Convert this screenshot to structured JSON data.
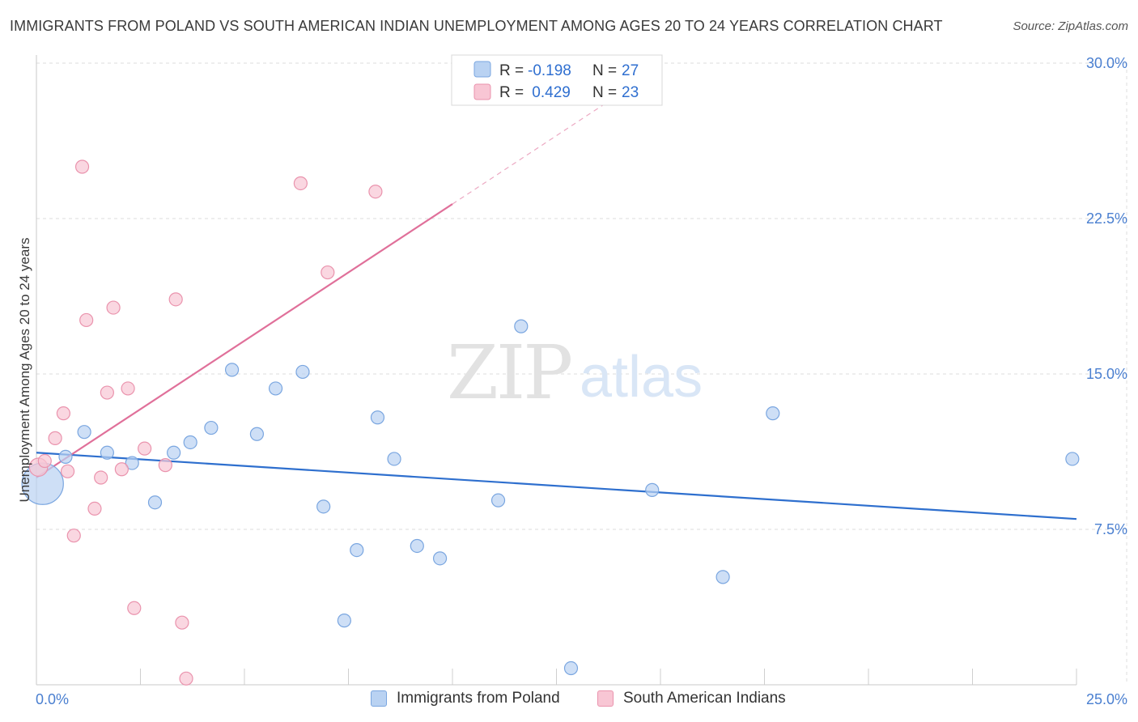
{
  "title": "IMMIGRANTS FROM POLAND VS SOUTH AMERICAN INDIAN UNEMPLOYMENT AMONG AGES 20 TO 24 YEARS CORRELATION CHART",
  "source": "Source: ZipAtlas.com",
  "watermark": {
    "zip": "ZIP",
    "atlas": "atlas"
  },
  "colors": {
    "blue_fill": "#b9d2f2",
    "blue_stroke": "#7aa6e0",
    "blue_line": "#2e6fce",
    "pink_fill": "#f8c6d4",
    "pink_stroke": "#ea93ad",
    "pink_line": "#e0709a",
    "grid": "#dcdcdc",
    "axis_text": "#4a7fd0"
  },
  "legend": {
    "rows": [
      {
        "r_label": "R = ",
        "r_value": "-0.198",
        "n_label": "N = ",
        "n_value": "27"
      },
      {
        "r_label": "R = ",
        "r_value": " 0.429",
        "n_label": "N = ",
        "n_value": "23"
      }
    ]
  },
  "chart_data": {
    "type": "scatter",
    "xlabel": "",
    "ylabel": "Unemployment Among Ages 20 to 24 years",
    "xlim": [
      0,
      25
    ],
    "ylim": [
      0,
      30
    ],
    "x_tick_labels": [
      "0.0%",
      "25.0%"
    ],
    "y_ticks": [
      7.5,
      15.0,
      22.5,
      30.0
    ],
    "y_tick_labels": [
      "7.5%",
      "15.0%",
      "22.5%",
      "30.0%"
    ],
    "grid": true,
    "series": [
      {
        "name": "Immigrants from Poland",
        "color": "blue",
        "points": [
          [
            0.15,
            9.7,
            3.2
          ],
          [
            0.7,
            11.0,
            1
          ],
          [
            1.15,
            12.2,
            1
          ],
          [
            1.7,
            11.2,
            1
          ],
          [
            2.3,
            10.7,
            1
          ],
          [
            2.85,
            8.8,
            1
          ],
          [
            3.3,
            11.2,
            1
          ],
          [
            3.7,
            11.7,
            1
          ],
          [
            4.2,
            12.4,
            1
          ],
          [
            4.7,
            15.2,
            1
          ],
          [
            5.3,
            12.1,
            1
          ],
          [
            5.75,
            14.3,
            1
          ],
          [
            6.4,
            15.1,
            1
          ],
          [
            6.9,
            8.6,
            1
          ],
          [
            7.4,
            3.1,
            1
          ],
          [
            7.7,
            6.5,
            1
          ],
          [
            8.2,
            12.9,
            1
          ],
          [
            8.6,
            10.9,
            1
          ],
          [
            9.15,
            6.7,
            1
          ],
          [
            9.7,
            6.1,
            1
          ],
          [
            11.1,
            8.9,
            1
          ],
          [
            11.65,
            17.3,
            1
          ],
          [
            12.85,
            0.8,
            1
          ],
          [
            14.8,
            9.4,
            1
          ],
          [
            16.5,
            5.2,
            1
          ],
          [
            17.7,
            13.1,
            1
          ],
          [
            24.9,
            10.9,
            1
          ]
        ],
        "trend": {
          "x0": 0.0,
          "y0": 11.2,
          "x1": 25.0,
          "y1": 8.0
        }
      },
      {
        "name": "South American Indians",
        "color": "pink",
        "points": [
          [
            0.05,
            10.5,
            1.4
          ],
          [
            0.2,
            10.8,
            1
          ],
          [
            0.45,
            11.9,
            1
          ],
          [
            0.65,
            13.1,
            1
          ],
          [
            0.75,
            10.3,
            1
          ],
          [
            0.9,
            7.2,
            1
          ],
          [
            1.1,
            25.0,
            1
          ],
          [
            1.2,
            17.6,
            1
          ],
          [
            1.4,
            8.5,
            1
          ],
          [
            1.55,
            10.0,
            1
          ],
          [
            1.7,
            14.1,
            1
          ],
          [
            1.85,
            18.2,
            1
          ],
          [
            2.05,
            10.4,
            1
          ],
          [
            2.2,
            14.3,
            1
          ],
          [
            2.35,
            3.7,
            1
          ],
          [
            2.6,
            11.4,
            1
          ],
          [
            3.1,
            10.6,
            1
          ],
          [
            3.35,
            18.6,
            1
          ],
          [
            3.5,
            3.0,
            1
          ],
          [
            3.6,
            0.3,
            1
          ],
          [
            6.35,
            24.2,
            1
          ],
          [
            7.0,
            19.9,
            1
          ],
          [
            8.15,
            23.8,
            1
          ]
        ],
        "trend": {
          "x0": 0.0,
          "y0": 10.0,
          "x1": 10.0,
          "y1": 23.2
        },
        "trend_extension": {
          "x0": 10.0,
          "y0": 23.2,
          "x1": 15.0,
          "y1": 29.8
        }
      }
    ]
  },
  "bottom_legend": [
    {
      "label": "Immigrants from Poland",
      "color": "blue"
    },
    {
      "label": "South American Indians",
      "color": "pink"
    }
  ]
}
